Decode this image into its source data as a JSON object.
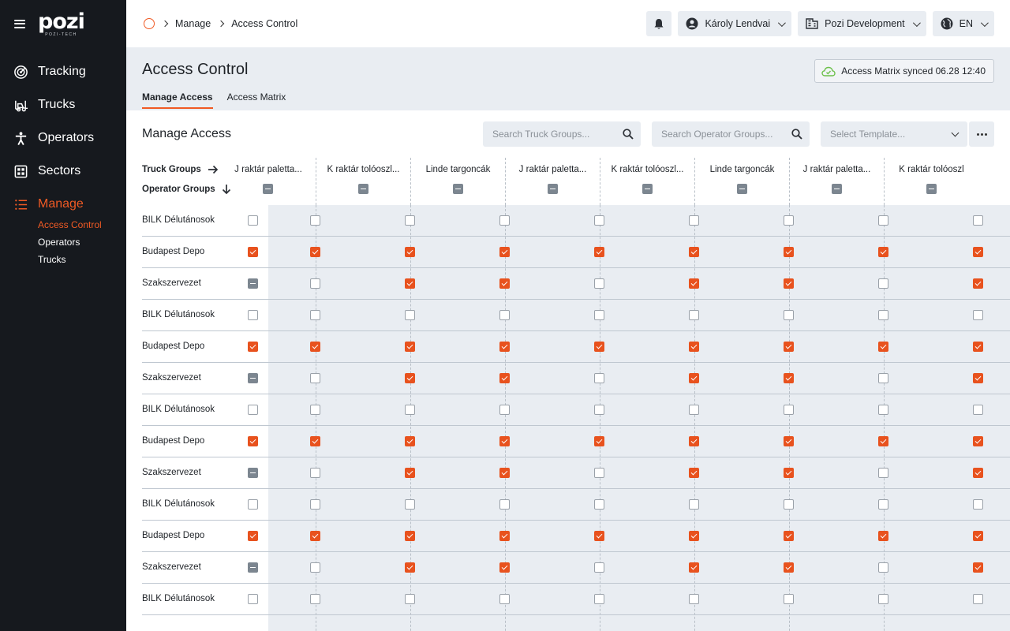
{
  "app": {
    "logo_text": "pozi",
    "logo_sub": "POZI-TECH"
  },
  "sidebar": {
    "items": [
      {
        "label": "Tracking",
        "icon": "radar-icon"
      },
      {
        "label": "Trucks",
        "icon": "forklift-icon"
      },
      {
        "label": "Operators",
        "icon": "person-icon"
      },
      {
        "label": "Sectors",
        "icon": "grid-icon"
      },
      {
        "label": "Manage",
        "icon": "list-icon",
        "active": true
      }
    ],
    "subitems": [
      {
        "label": "Access Control",
        "active": true
      },
      {
        "label": "Operators"
      },
      {
        "label": "Trucks"
      }
    ]
  },
  "breadcrumb": [
    "Manage",
    "Access Control"
  ],
  "topbar": {
    "user": "Károly Lendvai",
    "org": "Pozi Development",
    "lang": "EN"
  },
  "page": {
    "title": "Access Control",
    "tabs": [
      "Manage Access",
      "Access Matrix"
    ],
    "sync_text": "Access Matrix synced 06.28 12:40"
  },
  "manage": {
    "title": "Manage Access",
    "truck_search_placeholder": "Search Truck Groups...",
    "operator_search_placeholder": "Search Operator Groups...",
    "template_placeholder": "Select Template...",
    "truck_groups_label": "Truck Groups",
    "operator_groups_label": "Operator Groups"
  },
  "columns": [
    "J raktár paletta...",
    "K raktár tolóoszl...",
    "Linde targoncák",
    "J raktár paletta...",
    "K raktár tolóoszl...",
    "Linde targoncák",
    "J raktár paletta...",
    "K raktár tolóoszl"
  ],
  "rows": [
    {
      "name": "BILK Délutánosok",
      "state": "off",
      "cells": [
        0,
        0,
        0,
        0,
        0,
        0,
        0,
        0
      ]
    },
    {
      "name": "Budapest Depo",
      "state": "on",
      "cells": [
        1,
        1,
        1,
        1,
        1,
        1,
        1,
        1
      ]
    },
    {
      "name": "Szakszervezet",
      "state": "mixed",
      "cells": [
        0,
        1,
        1,
        0,
        1,
        1,
        0,
        1
      ]
    },
    {
      "name": "BILK Délutánosok",
      "state": "off",
      "cells": [
        0,
        0,
        0,
        0,
        0,
        0,
        0,
        0
      ]
    },
    {
      "name": "Budapest Depo",
      "state": "on",
      "cells": [
        1,
        1,
        1,
        1,
        1,
        1,
        1,
        1
      ]
    },
    {
      "name": "Szakszervezet",
      "state": "mixed",
      "cells": [
        0,
        1,
        1,
        0,
        1,
        1,
        0,
        1
      ]
    },
    {
      "name": "BILK Délutánosok",
      "state": "off",
      "cells": [
        0,
        0,
        0,
        0,
        0,
        0,
        0,
        0
      ]
    },
    {
      "name": "Budapest Depo",
      "state": "on",
      "cells": [
        1,
        1,
        1,
        1,
        1,
        1,
        1,
        1
      ]
    },
    {
      "name": "Szakszervezet",
      "state": "mixed",
      "cells": [
        0,
        1,
        1,
        0,
        1,
        1,
        0,
        1
      ]
    },
    {
      "name": "BILK Délutánosok",
      "state": "off",
      "cells": [
        0,
        0,
        0,
        0,
        0,
        0,
        0,
        0
      ]
    },
    {
      "name": "Budapest Depo",
      "state": "on",
      "cells": [
        1,
        1,
        1,
        1,
        1,
        1,
        1,
        1
      ]
    },
    {
      "name": "Szakszervezet",
      "state": "mixed",
      "cells": [
        0,
        1,
        1,
        0,
        1,
        1,
        0,
        1
      ]
    },
    {
      "name": "BILK Délutánosok",
      "state": "off",
      "cells": [
        0,
        0,
        0,
        0,
        0,
        0,
        0,
        0
      ]
    }
  ],
  "colors": {
    "accent": "#f05a24",
    "checkbox_on": "#e8521e",
    "checkbox_mixed": "#7c8690",
    "sidebar_bg": "#16191e",
    "sync_icon": "#6cc04a"
  }
}
